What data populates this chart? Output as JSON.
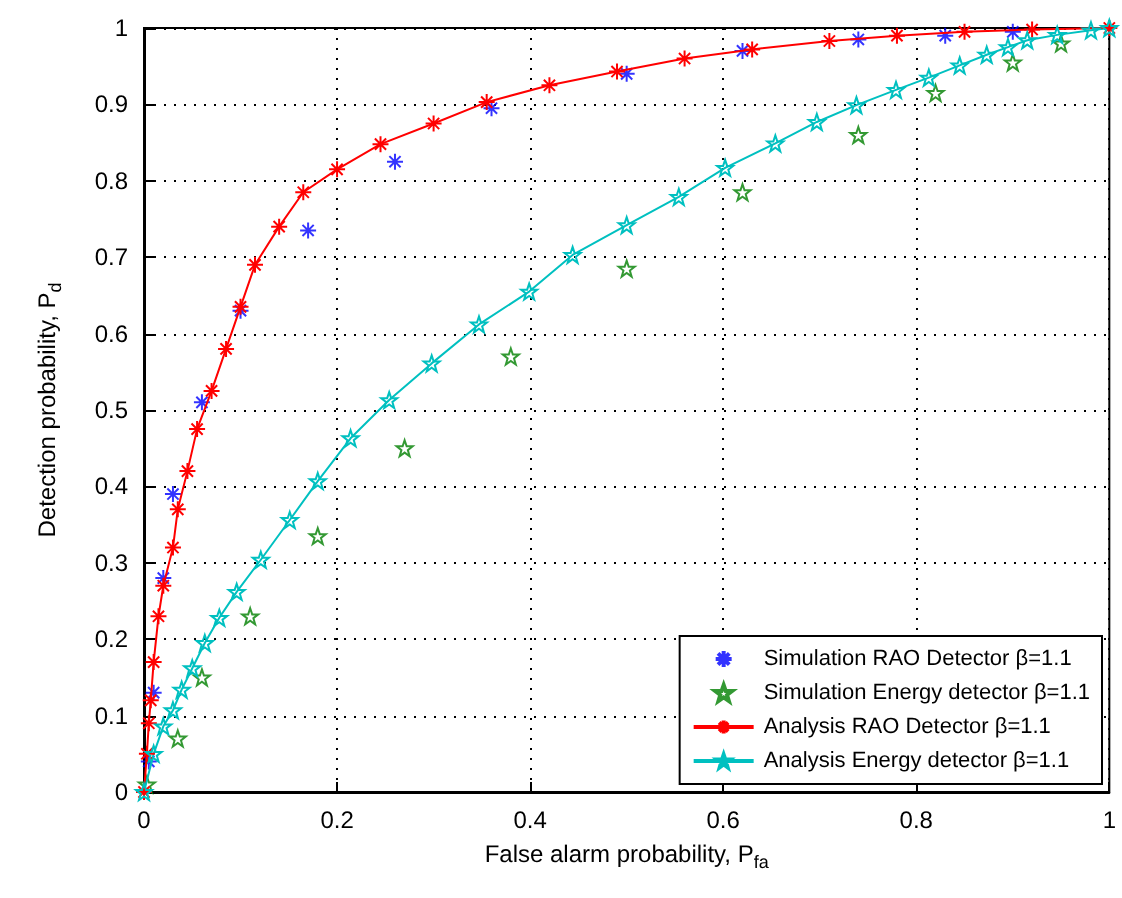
{
  "chart_data": {
    "type": "line",
    "xlabel": "False alarm probability, P$_{fa}$",
    "ylabel": "Detection probability, P$_{d}$",
    "xlim": [
      0,
      1
    ],
    "ylim": [
      0,
      1
    ],
    "xticks": [
      0,
      0.2,
      0.4,
      0.6,
      0.8,
      1
    ],
    "yticks": [
      0,
      0.1,
      0.2,
      0.3,
      0.4,
      0.5,
      0.6,
      0.7,
      0.8,
      0.9,
      1
    ],
    "grid": true,
    "legend": "bottom right",
    "series": [
      {
        "name": "Simulation RAO Detector β=1.1",
        "type": "scatter",
        "marker": "cross",
        "color": "#0000ff",
        "x": [
          0.005,
          0.01,
          0.02,
          0.03,
          0.06,
          0.1,
          0.17,
          0.26,
          0.36,
          0.5,
          0.62,
          0.74,
          0.83,
          0.9
        ],
        "values": [
          0.04,
          0.13,
          0.28,
          0.39,
          0.51,
          0.63,
          0.735,
          0.825,
          0.895,
          0.94,
          0.97,
          0.985,
          0.99,
          0.995
        ]
      },
      {
        "name": "Simulation Energy detector β=1.1",
        "type": "scatter",
        "marker": "star",
        "color": "#008000",
        "x": [
          0.003,
          0.035,
          0.06,
          0.11,
          0.18,
          0.27,
          0.38,
          0.5,
          0.62,
          0.74,
          0.82,
          0.9,
          0.95
        ],
        "values": [
          0.01,
          0.07,
          0.15,
          0.23,
          0.335,
          0.45,
          0.57,
          0.685,
          0.785,
          0.86,
          0.915,
          0.955,
          0.98
        ]
      },
      {
        "name": "Analysis RAO Detector β=1.1",
        "marker": "cross",
        "color": "#ff0000",
        "x": [
          0,
          0.003,
          0.005,
          0.007,
          0.01,
          0.015,
          0.02,
          0.03,
          0.035,
          0.045,
          0.055,
          0.07,
          0.085,
          0.1,
          0.115,
          0.14,
          0.165,
          0.2,
          0.245,
          0.3,
          0.355,
          0.42,
          0.49,
          0.56,
          0.63,
          0.71,
          0.78,
          0.85,
          0.92,
          1
        ],
        "values": [
          0,
          0.05,
          0.09,
          0.12,
          0.17,
          0.23,
          0.27,
          0.32,
          0.37,
          0.42,
          0.475,
          0.525,
          0.58,
          0.635,
          0.69,
          0.74,
          0.785,
          0.815,
          0.848,
          0.875,
          0.903,
          0.925,
          0.943,
          0.96,
          0.972,
          0.983,
          0.99,
          0.995,
          0.998,
          1
        ]
      },
      {
        "name": "Analysis Energy detector β=1.1",
        "marker": "star",
        "color": "#00c0c0",
        "x": [
          0,
          0.01,
          0.02,
          0.03,
          0.039,
          0.05,
          0.063,
          0.078,
          0.096,
          0.121,
          0.151,
          0.18,
          0.214,
          0.254,
          0.298,
          0.347,
          0.399,
          0.444,
          0.5,
          0.554,
          0.602,
          0.654,
          0.697,
          0.738,
          0.779,
          0.813,
          0.845,
          0.873,
          0.895,
          0.915,
          0.946,
          0.981,
          1
        ],
        "values": [
          0,
          0.05,
          0.086,
          0.107,
          0.134,
          0.162,
          0.195,
          0.228,
          0.262,
          0.304,
          0.356,
          0.407,
          0.463,
          0.513,
          0.561,
          0.612,
          0.655,
          0.703,
          0.742,
          0.779,
          0.817,
          0.849,
          0.877,
          0.899,
          0.919,
          0.935,
          0.951,
          0.965,
          0.975,
          0.984,
          0.991,
          0.997,
          1
        ]
      }
    ]
  }
}
